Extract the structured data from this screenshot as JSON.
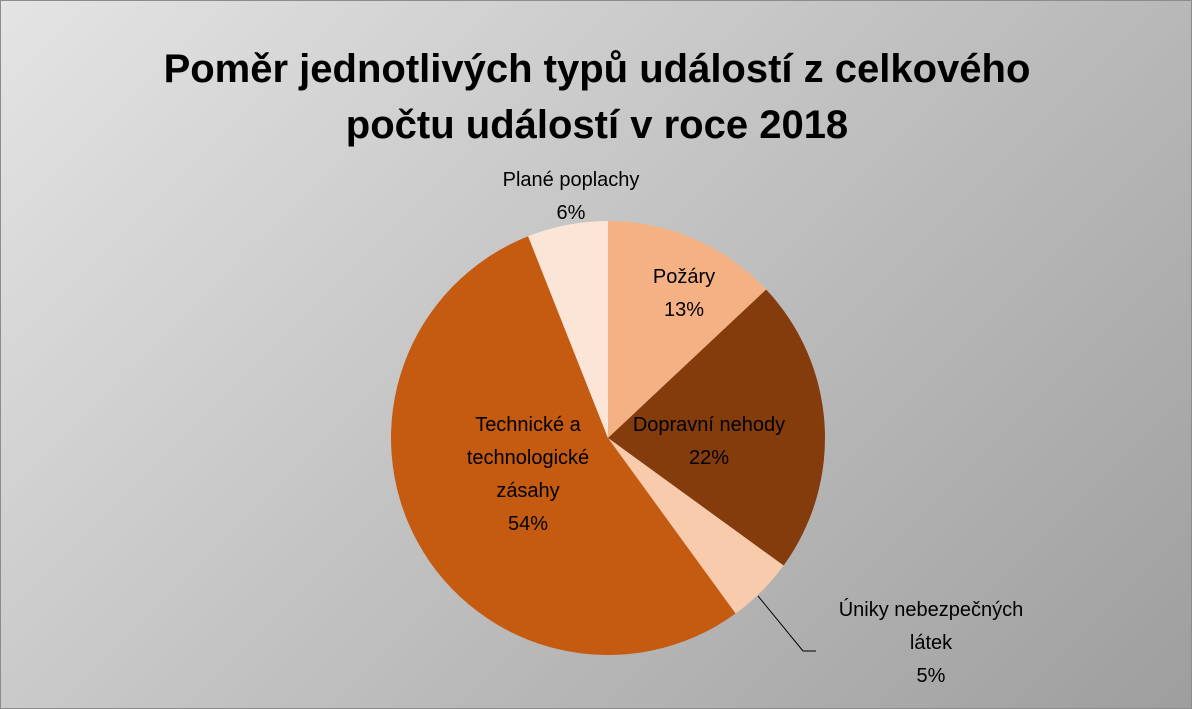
{
  "chart_data": {
    "type": "pie",
    "title": "Poměr jednotlivých typů událostí z celkového počtu událostí v roce 2018",
    "categories": [
      "Požáry",
      "Dopravní nehody",
      "Úniky nebezpečných látek",
      "Technické a technologické zásahy",
      "Plané poplachy"
    ],
    "values": [
      13,
      22,
      5,
      54,
      6
    ],
    "value_labels": [
      "13%",
      "22%",
      "5%",
      "54%",
      "6%"
    ],
    "colors": [
      "#f4b183",
      "#843c0c",
      "#f8cbad",
      "#c55a11",
      "#fbe5d6"
    ]
  }
}
